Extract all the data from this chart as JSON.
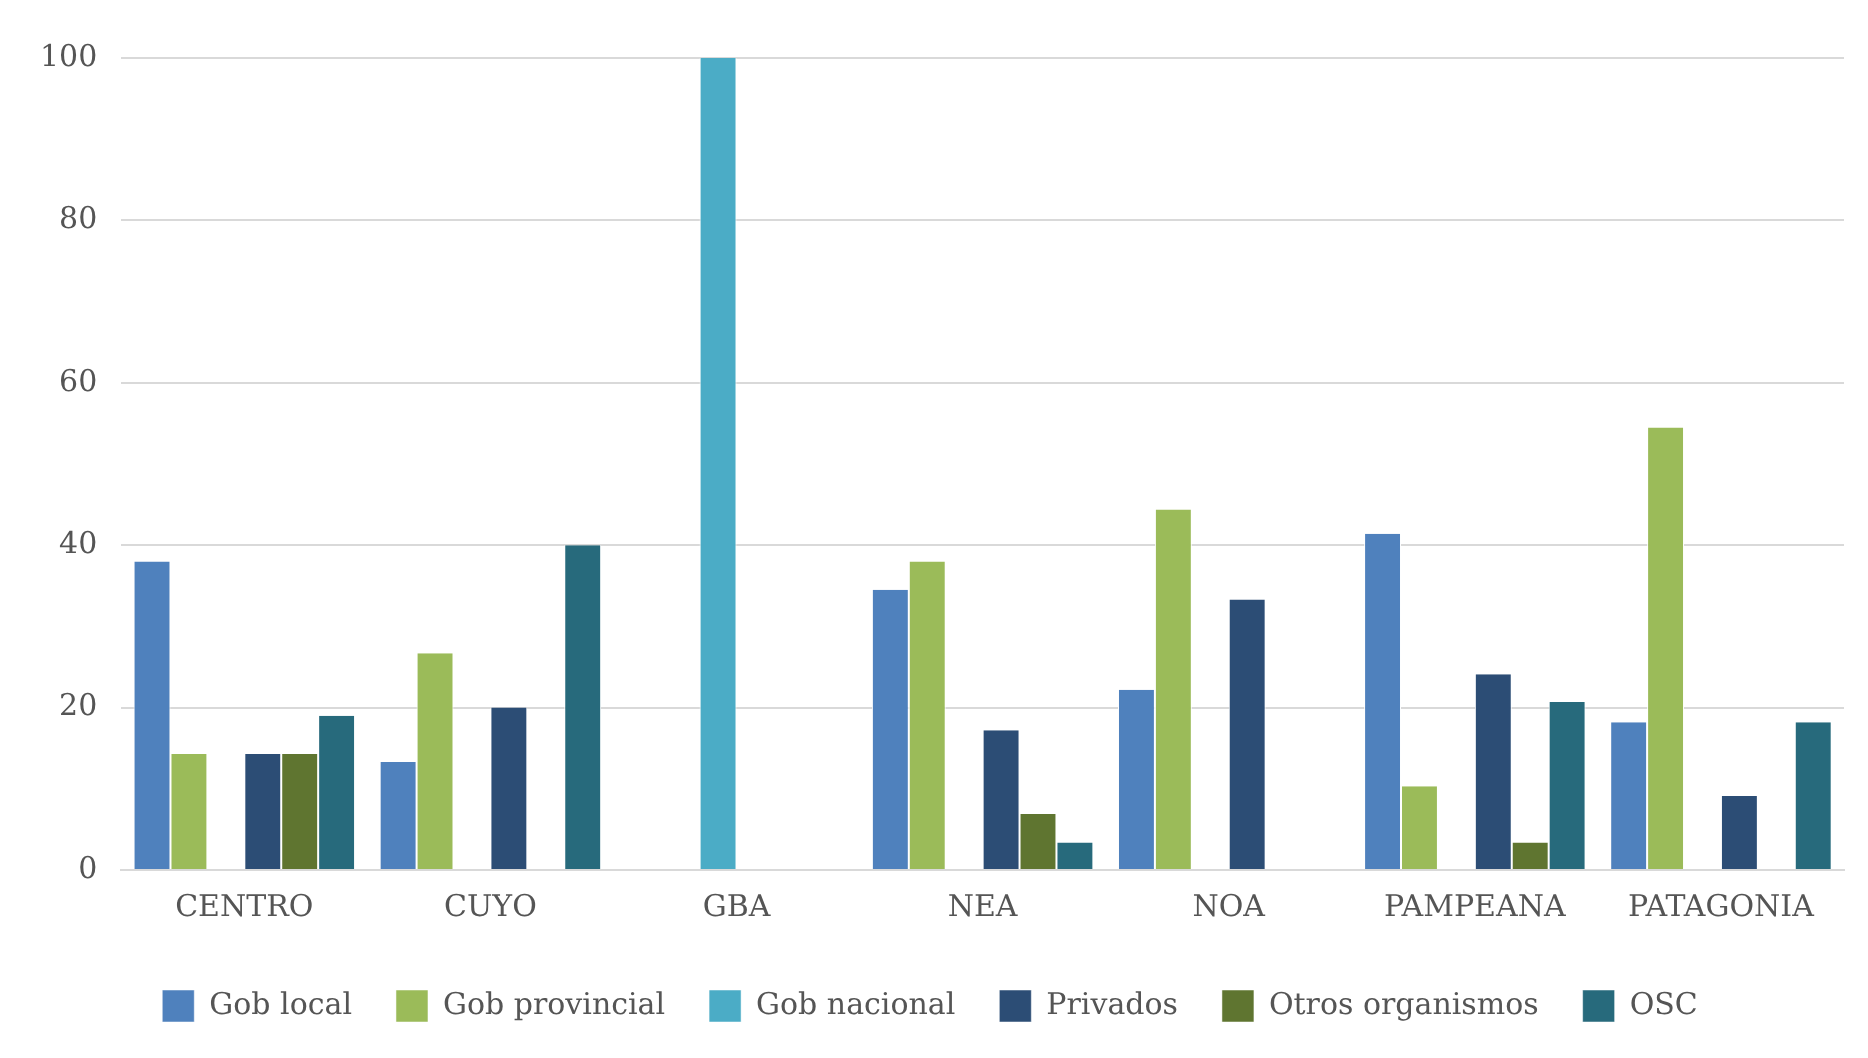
{
  "chart_data": {
    "type": "bar",
    "categories": [
      "CENTRO",
      "CUYO",
      "GBA",
      "NEA",
      "NOA",
      "PAMPEANA",
      "PATAGONIA"
    ],
    "series": [
      {
        "name": "Gob local",
        "color": "#4f81bd",
        "values": [
          38,
          13.3,
          0,
          34.5,
          22.2,
          41.4,
          18.2
        ]
      },
      {
        "name": "Gob provincial",
        "color": "#9bbb59",
        "values": [
          14.3,
          26.7,
          0,
          38,
          44.4,
          10.3,
          54.5
        ]
      },
      {
        "name": "Gob nacional",
        "color": "#4bacc6",
        "values": [
          0,
          0,
          100,
          0,
          0,
          0,
          0
        ]
      },
      {
        "name": "Privados",
        "color": "#2c4d75",
        "values": [
          14.3,
          20,
          0,
          17.2,
          33.3,
          24.1,
          9.1
        ]
      },
      {
        "name": "Otros organismos",
        "color": "#5f7530",
        "values": [
          14.3,
          0,
          0,
          6.9,
          0,
          3.4,
          0
        ]
      },
      {
        "name": "OSC",
        "color": "#276a7c",
        "values": [
          19,
          40,
          0,
          3.4,
          0,
          20.7,
          18.2
        ]
      }
    ],
    "ylim": [
      0,
      100
    ],
    "yticks": [
      0,
      20,
      40,
      60,
      80,
      100
    ],
    "grid": "y",
    "legend": "bottom"
  }
}
